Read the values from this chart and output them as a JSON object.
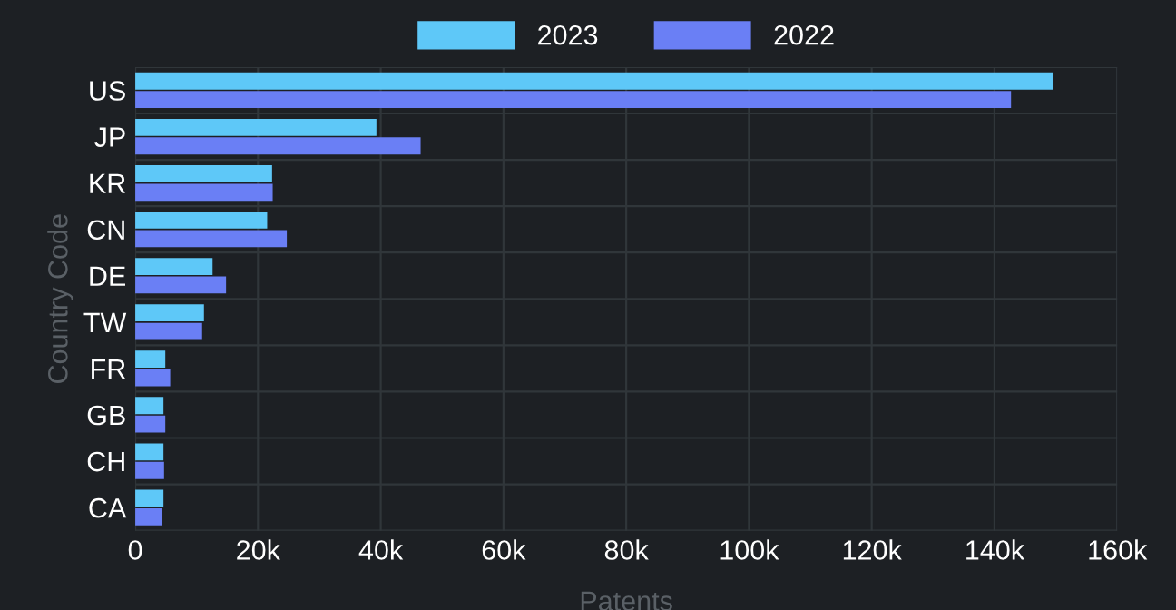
{
  "chart_data": {
    "type": "bar",
    "orientation": "horizontal",
    "xlabel": "Patents",
    "ylabel": "Country Code",
    "categories": [
      "US",
      "JP",
      "KR",
      "CN",
      "DE",
      "TW",
      "FR",
      "GB",
      "CH",
      "CA"
    ],
    "series": [
      {
        "name": "2023",
        "color": "#5ec8f8",
        "values": [
          149500,
          39300,
          22300,
          21500,
          12600,
          11200,
          4900,
          4600,
          4600,
          4600
        ]
      },
      {
        "name": "2022",
        "color": "#6a7ff5",
        "values": [
          142700,
          46500,
          22400,
          24700,
          14800,
          10900,
          5700,
          4900,
          4700,
          4300
        ]
      }
    ],
    "xlim": [
      0,
      160000
    ],
    "xticks": [
      0,
      {
        "value": 20000,
        "label": "20k"
      },
      {
        "value": 40000,
        "label": "40k"
      },
      {
        "value": 60000,
        "label": "60k"
      },
      {
        "value": 80000,
        "label": "80k"
      },
      {
        "value": 100000,
        "label": "100k"
      },
      {
        "value": 120000,
        "label": "120k"
      },
      {
        "value": 140000,
        "label": "140k"
      },
      {
        "value": 160000,
        "label": "160k"
      }
    ],
    "grid": true,
    "legend": "top"
  }
}
